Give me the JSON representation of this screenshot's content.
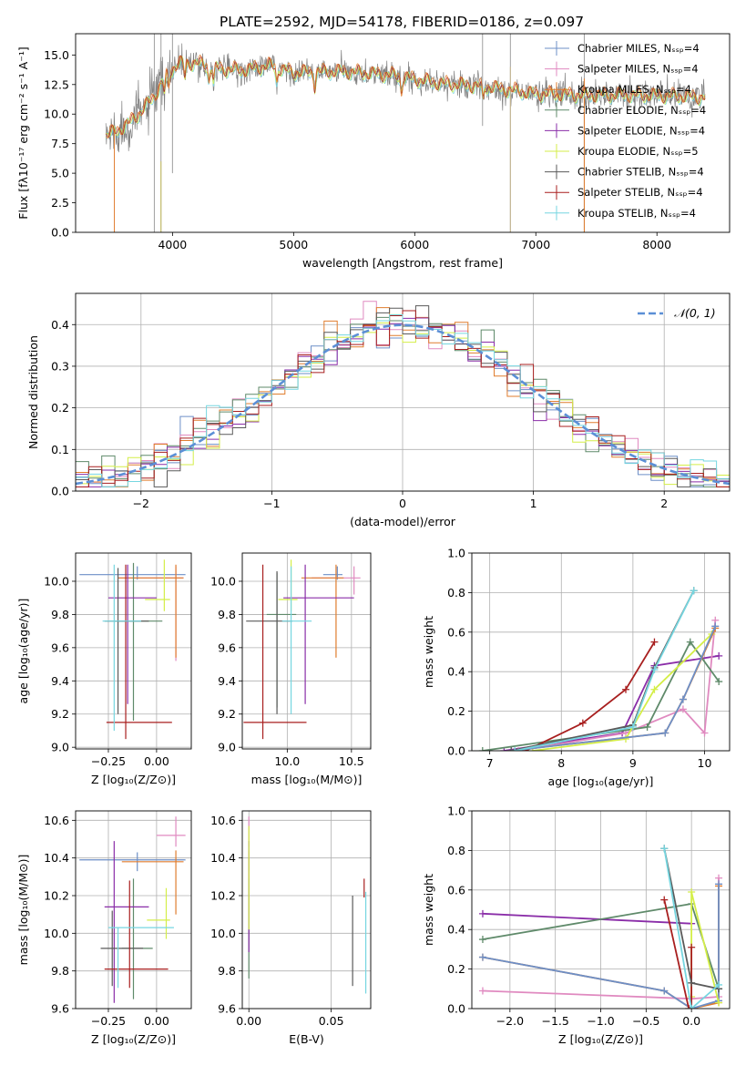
{
  "figure": {
    "title": "PLATE=2592, MJD=54178, FIBERID=0186, z=0.097"
  },
  "model_colors": [
    "#6d8fc7",
    "#e08ac0",
    "#e07d2e",
    "#5f8a6a",
    "#8a2da8",
    "#d4ee48",
    "#5a5a5a",
    "#a81f1f",
    "#76d6e0"
  ],
  "chart_data": [
    {
      "id": "spectrum",
      "type": "line",
      "title": "PLATE=2592, MJD=54178, FIBERID=0186, z=0.097",
      "xlabel": "wavelength [Angstrom, rest frame]",
      "ylabel": "Flux [fλ10⁻¹⁷ erg cm⁻² s⁻¹ A⁻¹]",
      "xlim": [
        3200,
        8600
      ],
      "ylim": [
        0,
        16.8
      ],
      "xticks": [
        4000,
        5000,
        6000,
        7000,
        8000
      ],
      "yticks": [
        0.0,
        2.5,
        5.0,
        7.5,
        10.0,
        12.5,
        15.0
      ],
      "legend_position": "top-right",
      "series": [
        {
          "name": "Chabrier MILES, N_SSP=4"
        },
        {
          "name": "Salpeter MILES, N_SSP=4"
        },
        {
          "name": "Kroupa MILES, N_SSP=4"
        },
        {
          "name": "Chabrier ELODIE, N_SSP=4"
        },
        {
          "name": "Salpeter ELODIE, N_SSP=4"
        },
        {
          "name": "Kroupa ELODIE, N_SSP=5"
        },
        {
          "name": "Chabrier STELIB, N_SSP=4"
        },
        {
          "name": "Salpeter STELIB, N_SSP=4"
        },
        {
          "name": "Kroupa STELIB, N_SSP=4"
        }
      ],
      "continuum_x": [
        3450,
        3550,
        3650,
        3750,
        3850,
        3950,
        4050,
        4200,
        4400,
        4600,
        4800,
        5000,
        5400,
        5800,
        6200,
        6600,
        7000,
        7400,
        7800,
        8200,
        8400
      ],
      "continuum_y": [
        8.2,
        8.6,
        9.3,
        10.3,
        11.5,
        13.3,
        14.3,
        14.3,
        13.8,
        13.7,
        14.1,
        13.5,
        13.6,
        13.3,
        12.6,
        12.3,
        11.7,
        11.6,
        11.6,
        11.5,
        11.4
      ],
      "observed_color": "#808080"
    },
    {
      "id": "residuals",
      "type": "step-histogram",
      "xlabel": "(data-model)/error",
      "ylabel": "Normed distribution",
      "xlim": [
        -2.5,
        2.5
      ],
      "ylim": [
        0,
        0.475
      ],
      "xticks": [
        -2,
        -1,
        0,
        1,
        2
      ],
      "yticks": [
        0.0,
        0.1,
        0.2,
        0.3,
        0.4
      ],
      "bin_width": 0.1,
      "legend": "𝒩(0, 1)",
      "legend_position": "top-right",
      "gaussian": {
        "mean": 0,
        "sigma": 1
      }
    },
    {
      "id": "age_vs_Z",
      "type": "errorbar",
      "xlabel": "Z [log₁₀(Z/Z⊙)]",
      "ylabel": "age  [log₁₀(age/yr)]",
      "xlim": [
        -0.42,
        0.18
      ],
      "ylim": [
        8.99,
        10.17
      ],
      "xticks": [
        -0.25,
        0.0
      ],
      "xticklabels": [
        "−0.25",
        "0.00"
      ],
      "yticks": [
        9.0,
        9.2,
        9.4,
        9.6,
        9.8,
        10.0
      ],
      "points": [
        {
          "x": -0.1,
          "y": 10.04,
          "xerr": [
            0.3,
            0.25
          ],
          "yerr": [
            0.03,
            0.05
          ],
          "c": 0
        },
        {
          "x": 0.1,
          "y": 10.02,
          "xerr": [
            0.3,
            0.04
          ],
          "yerr": [
            0.5,
            0.07
          ],
          "c": 1
        },
        {
          "x": 0.1,
          "y": 10.02,
          "xerr": [
            0.3,
            0.04
          ],
          "yerr": [
            0.48,
            0.08
          ],
          "c": 2
        },
        {
          "x": -0.12,
          "y": 9.76,
          "xerr": [
            0.1,
            0.15
          ],
          "yerr": [
            0.6,
            0.35
          ],
          "c": 3
        },
        {
          "x": -0.15,
          "y": 9.9,
          "xerr": [
            0.1,
            0.15
          ],
          "yerr": [
            0.64,
            0.2
          ],
          "c": 4
        },
        {
          "x": 0.04,
          "y": 9.89,
          "xerr": [
            0.1,
            0.03
          ],
          "yerr": [
            0.07,
            0.24
          ],
          "c": 5
        },
        {
          "x": -0.2,
          "y": 9.76,
          "xerr": [
            0.07,
            0.16
          ],
          "yerr": [
            0.56,
            0.32
          ],
          "c": 6
        },
        {
          "x": -0.16,
          "y": 9.15,
          "xerr": [
            0.1,
            0.24
          ],
          "yerr": [
            0.1,
            0.95
          ],
          "c": 7
        },
        {
          "x": -0.22,
          "y": 9.76,
          "xerr": [
            0.06,
            0.14
          ],
          "yerr": [
            0.66,
            0.34
          ],
          "c": 8
        }
      ]
    },
    {
      "id": "age_vs_mass",
      "type": "errorbar",
      "xlabel": "mass [log₁₀(M/M⊙)]",
      "ylabel": "",
      "xlim": [
        9.65,
        10.65
      ],
      "ylim": [
        8.99,
        10.17
      ],
      "xticks": [
        10.0,
        10.5
      ],
      "xticklabels": [
        "10.0",
        "10.5"
      ],
      "yticks": [
        9.0,
        9.2,
        9.4,
        9.6,
        9.8,
        10.0
      ],
      "points": [
        {
          "x": 10.39,
          "y": 10.04,
          "xerr": [
            0.11,
            0.04
          ],
          "yerr": [
            0.03,
            0.05
          ],
          "c": 0
        },
        {
          "x": 10.52,
          "y": 10.02,
          "xerr": [
            0.33,
            0.05
          ],
          "yerr": [
            0.1,
            0.07
          ],
          "c": 1
        },
        {
          "x": 10.38,
          "y": 10.02,
          "xerr": [
            0.27,
            0.06
          ],
          "yerr": [
            0.48,
            0.08
          ],
          "c": 2
        },
        {
          "x": 9.92,
          "y": 9.8,
          "xerr": [
            0.08,
            0.15
          ],
          "yerr": [
            0.56,
            0.25
          ],
          "c": 3
        },
        {
          "x": 10.14,
          "y": 9.9,
          "xerr": [
            0.17,
            0.38
          ],
          "yerr": [
            0.64,
            0.2
          ],
          "c": 4
        },
        {
          "x": 10.03,
          "y": 9.89,
          "xerr": [
            0.1,
            0.05
          ],
          "yerr": [
            0.07,
            0.24
          ],
          "c": 5
        },
        {
          "x": 9.92,
          "y": 9.76,
          "xerr": [
            0.24,
            0.12
          ],
          "yerr": [
            0.56,
            0.3
          ],
          "c": 6
        },
        {
          "x": 9.81,
          "y": 9.15,
          "xerr": [
            0.15,
            0.34
          ],
          "yerr": [
            0.1,
            0.95
          ],
          "c": 7
        },
        {
          "x": 10.03,
          "y": 9.76,
          "xerr": [
            0.07,
            0.16
          ],
          "yerr": [
            0.56,
            0.33
          ],
          "c": 8
        }
      ]
    },
    {
      "id": "weight_vs_age",
      "type": "line",
      "xlabel": "age  [log₁₀(age/yr)]",
      "ylabel": "mass weight",
      "xlim": [
        6.75,
        10.35
      ],
      "ylim": [
        0,
        1.0
      ],
      "xticks": [
        7,
        8,
        9,
        10
      ],
      "xticklabels": [
        "7",
        "8",
        "9",
        "10"
      ],
      "yticks": [
        0.0,
        0.2,
        0.4,
        0.6,
        0.8,
        1.0
      ],
      "series": [
        {
          "c": 4,
          "x": [
            7.2,
            8.85,
            9.3,
            10.2
          ],
          "y": [
            0.0,
            0.09,
            0.43,
            0.48
          ]
        },
        {
          "c": 1,
          "x": [
            7.4,
            8.9,
            9.7,
            10.0,
            10.15
          ],
          "y": [
            0.0,
            0.09,
            0.21,
            0.09,
            0.66
          ]
        },
        {
          "c": 3,
          "x": [
            6.9,
            9.2,
            9.8,
            10.2
          ],
          "y": [
            0.0,
            0.12,
            0.55,
            0.35
          ]
        },
        {
          "c": 5,
          "x": [
            7.6,
            8.9,
            9.3,
            10.1
          ],
          "y": [
            0.0,
            0.06,
            0.31,
            0.59
          ]
        },
        {
          "c": 7,
          "x": [
            7.5,
            8.3,
            8.9,
            9.3
          ],
          "y": [
            0.0,
            0.14,
            0.31,
            0.55
          ]
        },
        {
          "c": 2,
          "x": [
            7.3,
            9.45,
            9.7,
            10.15
          ],
          "y": [
            0.0,
            0.09,
            0.26,
            0.62
          ]
        },
        {
          "c": 0,
          "x": [
            7.3,
            9.45,
            9.7,
            10.15
          ],
          "y": [
            0.0,
            0.09,
            0.26,
            0.63
          ]
        },
        {
          "c": 6,
          "x": [
            7.3,
            9.0,
            9.3,
            9.85
          ],
          "y": [
            0.0,
            0.13,
            0.42,
            0.81
          ]
        },
        {
          "c": 8,
          "x": [
            7.35,
            9.0,
            9.3,
            9.85
          ],
          "y": [
            0.0,
            0.12,
            0.41,
            0.81
          ]
        }
      ]
    },
    {
      "id": "mass_vs_Z",
      "type": "errorbar",
      "xlabel": "Z [log₁₀(Z/Z⊙)]",
      "ylabel": "mass [log₁₀(M/M⊙)]",
      "xlim": [
        -0.42,
        0.18
      ],
      "ylim": [
        9.6,
        10.65
      ],
      "xticks": [
        -0.25,
        0.0
      ],
      "xticklabels": [
        "−0.25",
        "0.00"
      ],
      "yticks": [
        9.6,
        9.8,
        10.0,
        10.2,
        10.4,
        10.6
      ],
      "points": [
        {
          "x": -0.1,
          "y": 10.39,
          "xerr": [
            0.3,
            0.25
          ],
          "yerr": [
            0.06,
            0.04
          ],
          "c": 0
        },
        {
          "x": 0.1,
          "y": 10.52,
          "xerr": [
            0.1,
            0.05
          ],
          "yerr": [
            0.06,
            0.1
          ],
          "c": 1
        },
        {
          "x": 0.1,
          "y": 10.38,
          "xerr": [
            0.28,
            0.04
          ],
          "yerr": [
            0.28,
            0.06
          ],
          "c": 2
        },
        {
          "x": -0.12,
          "y": 9.92,
          "xerr": [
            0.06,
            0.1
          ],
          "yerr": [
            0.27,
            0.37
          ],
          "c": 3
        },
        {
          "x": -0.22,
          "y": 10.14,
          "xerr": [
            0.05,
            0.18
          ],
          "yerr": [
            0.51,
            0.35
          ],
          "c": 4
        },
        {
          "x": 0.05,
          "y": 10.07,
          "xerr": [
            0.1,
            0.02
          ],
          "yerr": [
            0.1,
            0.17
          ],
          "c": 5
        },
        {
          "x": -0.23,
          "y": 9.92,
          "xerr": [
            0.06,
            0.16
          ],
          "yerr": [
            0.2,
            0.2
          ],
          "c": 6
        },
        {
          "x": -0.14,
          "y": 9.81,
          "xerr": [
            0.13,
            0.2
          ],
          "yerr": [
            0.1,
            0.47
          ],
          "c": 7
        },
        {
          "x": -0.2,
          "y": 10.03,
          "xerr": [
            0.05,
            0.29
          ],
          "yerr": [
            0.32,
            0.0
          ],
          "c": 8
        }
      ]
    },
    {
      "id": "mass_vs_EBV",
      "type": "errorbar",
      "xlabel": "E(B-V)",
      "ylabel": "",
      "xlim": [
        -0.004,
        0.074
      ],
      "ylim": [
        9.6,
        10.65
      ],
      "xticks": [
        0.0,
        0.05
      ],
      "xticklabels": [
        "0.00",
        "0.05"
      ],
      "yticks": [
        9.6,
        9.8,
        10.0,
        10.2,
        10.4,
        10.6
      ],
      "points": [
        {
          "x": 0.0,
          "y": 10.39,
          "xerr": [
            0,
            0
          ],
          "yerr": [
            0.06,
            0.04
          ],
          "c": 0
        },
        {
          "x": 0.0,
          "y": 10.52,
          "xerr": [
            0,
            0
          ],
          "yerr": [
            0.06,
            0.1
          ],
          "c": 1
        },
        {
          "x": 0.0,
          "y": 10.38,
          "xerr": [
            0,
            0
          ],
          "yerr": [
            0.28,
            0.06
          ],
          "c": 2
        },
        {
          "x": 0.0,
          "y": 9.92,
          "xerr": [
            0,
            0
          ],
          "yerr": [
            0.16,
            0.37
          ],
          "c": 3
        },
        {
          "x": 0.0,
          "y": 10.14,
          "xerr": [
            0,
            0
          ],
          "yerr": [
            0.24,
            0.35
          ],
          "c": 4
        },
        {
          "x": 0.0,
          "y": 10.07,
          "xerr": [
            0,
            0
          ],
          "yerr": [
            0.05,
            0.5
          ],
          "c": 5
        },
        {
          "x": 0.063,
          "y": 9.92,
          "xerr": [
            0,
            0
          ],
          "yerr": [
            0.2,
            0.28
          ],
          "c": 6
        },
        {
          "x": 0.07,
          "y": 10.23,
          "xerr": [
            0,
            0
          ],
          "yerr": [
            0.04,
            0.06
          ],
          "c": 7
        },
        {
          "x": 0.071,
          "y": 9.92,
          "xerr": [
            0,
            0
          ],
          "yerr": [
            0.24,
            0.3
          ],
          "c": 8
        }
      ]
    },
    {
      "id": "weight_vs_Z",
      "type": "line",
      "xlabel": "Z [log₁₀(Z/Z⊙)]",
      "ylabel": "mass weight",
      "xlim": [
        -2.42,
        0.42
      ],
      "ylim": [
        0,
        1.0
      ],
      "xticks": [
        -2.0,
        -1.5,
        -1.0,
        -0.5,
        0.0
      ],
      "xticklabels": [
        "−2.0",
        "−1.5",
        "−1.0",
        "−0.5",
        "0.0"
      ],
      "yticks": [
        0.0,
        0.2,
        0.4,
        0.6,
        0.8,
        1.0
      ],
      "series": [
        {
          "c": 4,
          "x": [
            -2.3,
            0.0
          ],
          "y": [
            0.48,
            0.43
          ]
        },
        {
          "c": 3,
          "x": [
            -2.3,
            0.0,
            0.3
          ],
          "y": [
            0.35,
            0.53,
            0.1
          ]
        },
        {
          "c": 1,
          "x": [
            -2.3,
            0.0,
            0.3,
            0.3
          ],
          "y": [
            0.09,
            0.05,
            0.06,
            0.66
          ]
        },
        {
          "c": 2,
          "x": [
            -2.3,
            -0.3,
            0.0,
            0.3,
            0.3
          ],
          "y": [
            0.26,
            0.09,
            0.0,
            0.03,
            0.62
          ]
        },
        {
          "c": 0,
          "x": [
            -2.3,
            -0.3,
            0.0,
            0.3,
            0.3
          ],
          "y": [
            0.26,
            0.09,
            0.0,
            0.04,
            0.63
          ]
        },
        {
          "c": 5,
          "x": [
            0.0,
            0.0,
            0.3
          ],
          "y": [
            0.06,
            0.59,
            0.03
          ]
        },
        {
          "c": 7,
          "x": [
            -0.3,
            -0.03,
            0.0,
            0.0
          ],
          "y": [
            0.55,
            0.0,
            0.0,
            0.31
          ]
        },
        {
          "c": 6,
          "x": [
            -0.3,
            0.0,
            0.3
          ],
          "y": [
            0.81,
            0.13,
            0.1
          ]
        },
        {
          "c": 8,
          "x": [
            -0.3,
            0.0,
            0.3
          ],
          "y": [
            0.81,
            0.0,
            0.12
          ]
        }
      ]
    }
  ]
}
